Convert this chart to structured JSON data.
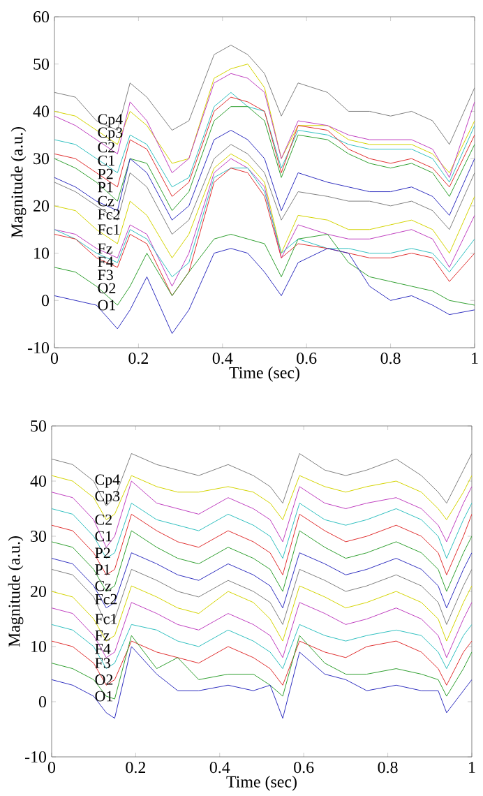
{
  "chart_data": [
    {
      "type": "line",
      "xlabel": "Time (sec)",
      "ylabel": "Magnitude (a.u.)",
      "xlim": [
        0,
        1
      ],
      "ylim": [
        -10,
        60
      ],
      "xticks": [
        0,
        0.2,
        0.4,
        0.6,
        0.8,
        1
      ],
      "yticks": [
        -10,
        0,
        10,
        20,
        30,
        40,
        50,
        60
      ],
      "x": [
        0,
        0.05,
        0.1,
        0.15,
        0.18,
        0.22,
        0.28,
        0.32,
        0.38,
        0.42,
        0.46,
        0.5,
        0.54,
        0.58,
        0.65,
        0.7,
        0.75,
        0.8,
        0.85,
        0.9,
        0.94,
        1
      ],
      "series": [
        {
          "name": "Cp4",
          "color": "#808080",
          "values": [
            44,
            43,
            38,
            36,
            46,
            43,
            36,
            38,
            52,
            54,
            52,
            48,
            39,
            46,
            44,
            40,
            40,
            39,
            40,
            38,
            33,
            45
          ]
        },
        {
          "name": "Cp3",
          "color": "#d4d400",
          "values": [
            40,
            39,
            36,
            33,
            40,
            37,
            29,
            30,
            47,
            49,
            50,
            45,
            30,
            37,
            37,
            34,
            33,
            33,
            33,
            31,
            27,
            38
          ]
        },
        {
          "name": "C2",
          "color": "#c040c0",
          "values": [
            39,
            37,
            34,
            31,
            42,
            38,
            27,
            30,
            46,
            48,
            47,
            44,
            30,
            38,
            37,
            35,
            34,
            34,
            34,
            32,
            26,
            42
          ]
        },
        {
          "name": "C1",
          "color": "#30c0c0",
          "values": [
            34,
            33,
            30,
            27,
            35,
            33,
            24,
            26,
            41,
            44,
            41,
            40,
            28,
            36,
            35,
            33,
            32,
            32,
            32,
            30,
            25,
            37
          ]
        },
        {
          "name": "P2",
          "color": "#e03030",
          "values": [
            31,
            30,
            27,
            24,
            34,
            32,
            22,
            25,
            40,
            43,
            42,
            40,
            27,
            37,
            36,
            32,
            30,
            29,
            30,
            28,
            24,
            35
          ]
        },
        {
          "name": "P1",
          "color": "#30a030",
          "values": [
            30,
            28,
            25,
            21,
            30,
            29,
            19,
            23,
            38,
            41,
            41,
            38,
            26,
            35,
            34,
            31,
            29,
            28,
            29,
            27,
            22,
            33
          ]
        },
        {
          "name": "Cz",
          "color": "#3030c0",
          "values": [
            26,
            24,
            21,
            19,
            30,
            27,
            17,
            20,
            34,
            36,
            34,
            30,
            19,
            27,
            25,
            24,
            23,
            23,
            24,
            22,
            18,
            30
          ]
        },
        {
          "name": "Fc2",
          "color": "#808080",
          "values": [
            25,
            23,
            20,
            17,
            27,
            24,
            14,
            17,
            30,
            33,
            31,
            27,
            17,
            23,
            22,
            21,
            21,
            20,
            21,
            19,
            15,
            27
          ]
        },
        {
          "name": "Fc1",
          "color": "#d4d400",
          "values": [
            20,
            19,
            15,
            12,
            21,
            18,
            9,
            14,
            28,
            31,
            29,
            25,
            10,
            18,
            17,
            15,
            15,
            16,
            17,
            15,
            10,
            22
          ]
        },
        {
          "name": "Fz",
          "color": "#c040c0",
          "values": [
            15,
            14,
            11,
            9,
            16,
            14,
            3,
            10,
            27,
            30,
            28,
            24,
            9,
            16,
            14,
            13,
            13,
            14,
            15,
            13,
            7,
            18
          ]
        },
        {
          "name": "F4",
          "color": "#30c0c0",
          "values": [
            15,
            13,
            10,
            8,
            15,
            13,
            5,
            8,
            26,
            28,
            28,
            23,
            10,
            13,
            11,
            11,
            10,
            10,
            11,
            10,
            6,
            13
          ]
        },
        {
          "name": "F3",
          "color": "#e03030",
          "values": [
            14,
            13,
            9,
            7,
            14,
            12,
            1,
            6,
            25,
            28,
            27,
            22,
            9,
            12,
            11,
            10,
            9,
            9,
            10,
            9,
            4,
            10
          ]
        },
        {
          "name": "O2",
          "color": "#30a030",
          "values": [
            7,
            6,
            3,
            -1,
            3,
            10,
            1,
            6,
            13,
            14,
            13,
            12,
            5,
            13,
            14,
            8,
            5,
            4,
            3,
            2,
            0,
            -1
          ]
        },
        {
          "name": "O1",
          "color": "#3030c0",
          "values": [
            1,
            0,
            -1,
            -6,
            -2,
            5,
            -7,
            -2,
            10,
            11,
            10,
            6,
            1,
            8,
            11,
            10,
            3,
            0,
            1,
            -1,
            -3,
            -2
          ]
        }
      ]
    },
    {
      "type": "line",
      "xlabel": "Time (sec)",
      "ylabel": "Magnitude (a.u.)",
      "xlim": [
        0,
        1
      ],
      "ylim": [
        -10,
        50
      ],
      "xticks": [
        0,
        0.2,
        0.4,
        0.6,
        0.8,
        1
      ],
      "yticks": [
        -10,
        0,
        10,
        20,
        30,
        40,
        50
      ],
      "x": [
        0,
        0.05,
        0.1,
        0.13,
        0.15,
        0.19,
        0.25,
        0.3,
        0.35,
        0.42,
        0.48,
        0.52,
        0.55,
        0.59,
        0.65,
        0.7,
        0.75,
        0.82,
        0.88,
        0.92,
        0.94,
        0.98,
        1
      ],
      "series": [
        {
          "name": "Cp4",
          "color": "#808080",
          "values": [
            44,
            43,
            40,
            35.5,
            37,
            45,
            43,
            42,
            41,
            43,
            41,
            39,
            36,
            45,
            42,
            41,
            42,
            44,
            41,
            38,
            36,
            42,
            45
          ]
        },
        {
          "name": "Cp3",
          "color": "#d4d400",
          "values": [
            41,
            40,
            37,
            33,
            34,
            41,
            39,
            38,
            38,
            39,
            38,
            36,
            33,
            41,
            39,
            38,
            39,
            40,
            38,
            35,
            33,
            38,
            41
          ]
        },
        {
          "name": "C2",
          "color": "#c040c0",
          "values": [
            38,
            37,
            33,
            28,
            30,
            40,
            36,
            35,
            34,
            37,
            35,
            33,
            29,
            39,
            36,
            35,
            36,
            37,
            35,
            32,
            29,
            36,
            39
          ]
        },
        {
          "name": "C1",
          "color": "#30c0c0",
          "values": [
            35,
            34,
            30,
            26,
            27,
            36,
            33,
            32,
            31,
            34,
            32,
            30,
            26,
            36,
            33,
            32,
            33,
            35,
            33,
            30,
            26,
            33,
            36
          ]
        },
        {
          "name": "P2",
          "color": "#e03030",
          "values": [
            32,
            31,
            27,
            23,
            24,
            34,
            31,
            29,
            28,
            31,
            29,
            27,
            23,
            34,
            31,
            29,
            30,
            32,
            30,
            27,
            23,
            30,
            34
          ]
        },
        {
          "name": "P1",
          "color": "#30a030",
          "values": [
            29,
            28,
            24,
            20,
            21,
            31,
            28,
            26,
            25,
            28,
            26,
            24,
            20,
            31,
            28,
            26,
            27,
            29,
            27,
            24,
            20,
            27,
            30
          ]
        },
        {
          "name": "Cz",
          "color": "#3030c0",
          "values": [
            26,
            25,
            21,
            17,
            18,
            27,
            25,
            23,
            22,
            25,
            23,
            21,
            17,
            27,
            25,
            23,
            24,
            26,
            24,
            21,
            17,
            24,
            27
          ]
        },
        {
          "name": "Fc2",
          "color": "#808080",
          "values": [
            24,
            23,
            19,
            14,
            15,
            24,
            22,
            20,
            19,
            22,
            20,
            18,
            14,
            24,
            22,
            20,
            21,
            23,
            21,
            18,
            14,
            21,
            24
          ]
        },
        {
          "name": "Fc1",
          "color": "#d4d400",
          "values": [
            20,
            19,
            15,
            11,
            12,
            21,
            19,
            17,
            16,
            20,
            18,
            15,
            11,
            21,
            19,
            17,
            18,
            20,
            18,
            15,
            11,
            18,
            21
          ]
        },
        {
          "name": "Fz",
          "color": "#c040c0",
          "values": [
            17,
            16,
            12,
            8,
            9,
            18,
            16,
            14,
            13,
            16,
            14,
            12,
            8,
            18,
            16,
            14,
            15,
            17,
            15,
            12,
            8,
            15,
            18
          ]
        },
        {
          "name": "F4",
          "color": "#30c0c0",
          "values": [
            14,
            13,
            10,
            6,
            7,
            14,
            13,
            11,
            10,
            13,
            11,
            9,
            6,
            14,
            12,
            11,
            12,
            13,
            12,
            9,
            6,
            12,
            14
          ]
        },
        {
          "name": "F3",
          "color": "#e03030",
          "values": [
            11,
            10,
            7,
            3,
            4,
            11,
            9,
            8,
            7,
            10,
            8,
            6,
            3,
            11,
            9,
            8,
            10,
            11,
            9,
            6,
            3,
            9,
            11
          ]
        },
        {
          "name": "O2",
          "color": "#30a030",
          "values": [
            7,
            6,
            4,
            1,
            0.5,
            12,
            6,
            8,
            4,
            5,
            5,
            3,
            1,
            12,
            7,
            5,
            5,
            6,
            5,
            4,
            1,
            6,
            9
          ]
        },
        {
          "name": "O1",
          "color": "#3030c0",
          "values": [
            4,
            3,
            1,
            -2,
            -3,
            10,
            5,
            2,
            2,
            3,
            2,
            3,
            -3,
            9,
            5,
            4,
            2,
            3,
            2,
            2,
            -2,
            2,
            4
          ]
        }
      ]
    }
  ]
}
